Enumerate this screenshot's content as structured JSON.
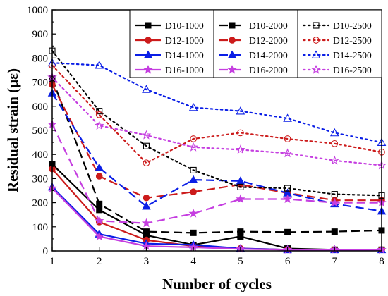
{
  "chart_data": {
    "type": "line",
    "xlabel": "Number of cycles",
    "ylabel": "Residual strain (με)",
    "xlim": [
      1,
      8
    ],
    "ylim": [
      0,
      1000
    ],
    "x_ticks": [
      1,
      2,
      3,
      4,
      5,
      6,
      7,
      8
    ],
    "y_ticks": [
      0,
      100,
      200,
      300,
      400,
      500,
      600,
      700,
      800,
      900,
      1000
    ],
    "grid": false,
    "legend_placement": "top-right",
    "x": [
      1,
      2,
      3,
      4,
      5,
      6,
      7,
      8
    ],
    "series": [
      {
        "name": "D10-1000",
        "color": "#000000",
        "marker": "square-filled",
        "line": "solid",
        "values": [
          360,
          170,
          65,
          25,
          60,
          10,
          5,
          5
        ]
      },
      {
        "name": "D12-1000",
        "color": "#cc1b1b",
        "marker": "circle-filled",
        "line": "solid",
        "values": [
          340,
          120,
          45,
          20,
          10,
          5,
          5,
          5
        ]
      },
      {
        "name": "D14-1000",
        "color": "#0a1ee6",
        "marker": "triangle-filled",
        "line": "solid",
        "values": [
          265,
          70,
          30,
          25,
          10,
          5,
          5,
          5
        ]
      },
      {
        "name": "D16-1000",
        "color": "#c53ee0",
        "marker": "star-filled",
        "line": "solid",
        "values": [
          260,
          60,
          20,
          15,
          8,
          5,
          5,
          5
        ]
      },
      {
        "name": "D10-2000",
        "color": "#000000",
        "marker": "square-filled",
        "line": "dash",
        "values": [
          715,
          195,
          80,
          75,
          80,
          78,
          80,
          85
        ]
      },
      {
        "name": "D12-2000",
        "color": "#cc1b1b",
        "marker": "circle-filled",
        "line": "dash",
        "values": [
          690,
          310,
          220,
          245,
          275,
          240,
          210,
          210
        ]
      },
      {
        "name": "D14-2000",
        "color": "#0a1ee6",
        "marker": "triangle-filled",
        "line": "dash",
        "values": [
          655,
          345,
          185,
          295,
          290,
          240,
          195,
          165
        ]
      },
      {
        "name": "D16-2000",
        "color": "#c53ee0",
        "marker": "star-filled",
        "line": "dash",
        "values": [
          525,
          125,
          115,
          155,
          215,
          215,
          200,
          200
        ]
      },
      {
        "name": "D10-2500",
        "color": "#000000",
        "marker": "square-open",
        "line": "dot",
        "values": [
          830,
          580,
          435,
          335,
          265,
          260,
          235,
          230
        ]
      },
      {
        "name": "D12-2500",
        "color": "#cc1b1b",
        "marker": "circle-open",
        "line": "dot",
        "values": [
          770,
          565,
          365,
          465,
          490,
          465,
          445,
          410
        ]
      },
      {
        "name": "D14-2500",
        "color": "#0a1ee6",
        "marker": "triangle-open",
        "line": "dot",
        "values": [
          780,
          770,
          670,
          595,
          580,
          550,
          490,
          450
        ]
      },
      {
        "name": "D16-2500",
        "color": "#c53ee0",
        "marker": "star-open",
        "line": "dot",
        "values": [
          720,
          520,
          480,
          430,
          420,
          405,
          375,
          355
        ]
      }
    ],
    "legend_groups": [
      [
        "D10-1000",
        "D12-1000",
        "D14-1000",
        "D16-1000"
      ],
      [
        "D10-2000",
        "D12-2000",
        "D14-2000",
        "D16-2000"
      ],
      [
        "D10-2500",
        "D12-2500",
        "D14-2500",
        "D16-2500"
      ]
    ]
  }
}
